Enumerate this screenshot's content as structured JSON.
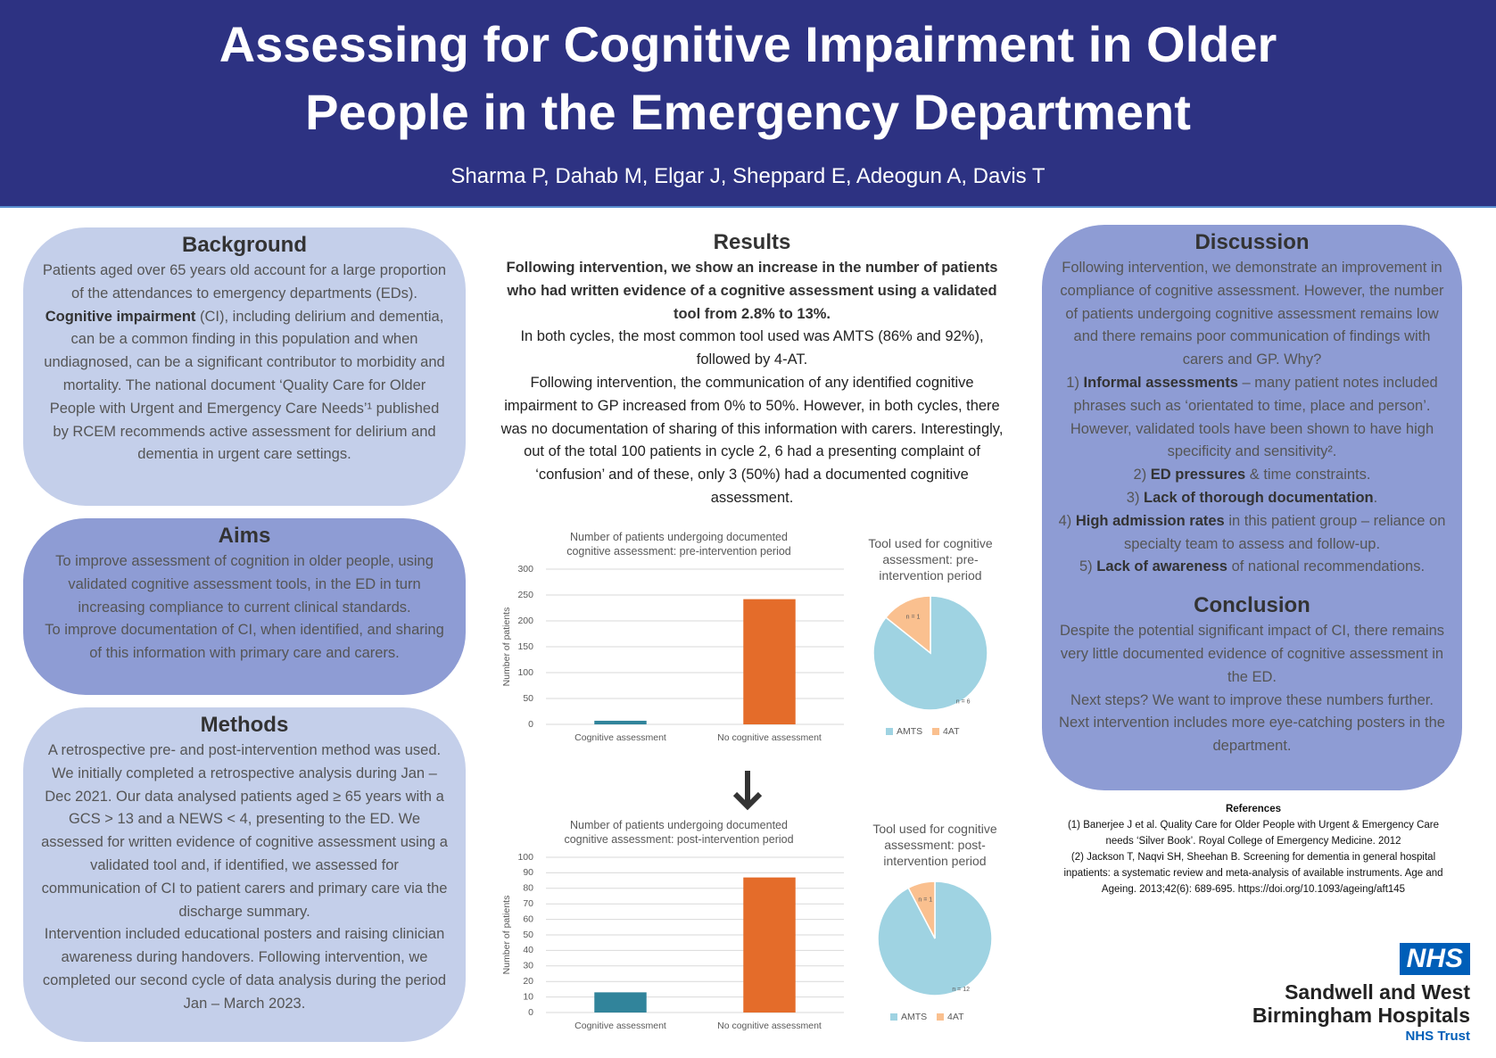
{
  "header": {
    "title": [
      "Assessing for Cognitive Impairment in Older",
      "People in the Emergency Department"
    ],
    "authors": "Sharma P, Dahab M, Elgar J, Sheppard E, Adeogun A, Davis T"
  },
  "sections": [
    {
      "heading": "Background",
      "paragraphs": [
        [
          "Patients aged over 65 years old account for a large proportion of the attendances to emergency departments (EDs). ",
          {
            "bold": "Cognitive impairment"
          },
          " (CI), including delirium and dementia, can be a common finding in this population and when undiagnosed, can be a significant contributor to morbidity and mortality. The national document ‘Quality Care for Older People with Urgent and Emergency Care Needs’¹ published by RCEM recommends active assessment for delirium and dementia in urgent care settings."
        ]
      ]
    },
    {
      "heading": "Aims",
      "paragraphs": [
        [
          "To improve assessment of cognition in older people, using validated cognitive assessment tools, in the ED in turn increasing compliance to current clinical standards."
        ],
        [
          "To improve documentation of CI, when identified, and sharing of this information with primary care and carers."
        ]
      ]
    },
    {
      "heading": "Methods",
      "paragraphs": [
        [
          "A retrospective pre- and post-intervention method was used. We initially completed a retrospective analysis during Jan – Dec 2021. Our data analysed patients aged ≥ 65 years with a GCS > 13 and a NEWS < 4, presenting to the ED. We assessed for written evidence of cognitive assessment using a validated tool and, if identified, we assessed for communication of CI to patient carers and primary care via the discharge summary."
        ],
        [
          "Intervention included educational posters and raising clinician awareness during handovers. Following intervention, we completed our second cycle of data analysis during the period Jan – March 2023."
        ]
      ]
    },
    {
      "heading": "Results",
      "paragraphs": [
        [
          {
            "bold": "Following intervention, we show an increase in the number of patients who had written evidence of a cognitive assessment using a validated tool from 2.8% to 13%."
          }
        ],
        [
          "In both cycles, the most common tool used was AMTS (86% and 92%), followed by 4-AT."
        ],
        [
          "Following intervention, the communication of any identified cognitive impairment to GP increased from 0% to 50%. However, in both cycles, there was no documentation of sharing of this information with carers. Interestingly, out of the total 100 patients in cycle 2, 6 had a presenting complaint of ‘confusion’ and of these, only 3 (50%) had a documented cognitive assessment."
        ]
      ]
    },
    {
      "heading": "Discussion",
      "paragraphs": [
        [
          "Following intervention, we demonstrate an improvement in compliance of cognitive assessment. However, the number of patients undergoing cognitive assessment remains low and there remains poor communication of findings with carers and GP. Why?"
        ],
        [
          "1) ",
          {
            "bold": "Informal assessments"
          },
          " – many patient notes included phrases such as ‘orientated to time, place and person’. However, validated tools have been shown to have high specificity and sensitivity²."
        ],
        [
          "2) ",
          {
            "bold": "ED pressures"
          },
          " & time constraints."
        ],
        [
          "3) ",
          {
            "bold": "Lack of thorough documentation"
          },
          "."
        ],
        [
          "4) ",
          {
            "bold": "High admission rates"
          },
          " in this patient group – reliance on specialty team to assess and follow-up."
        ],
        [
          "5) ",
          {
            "bold": "Lack of awareness"
          },
          " of national recommendations."
        ]
      ]
    },
    {
      "heading": "Conclusion",
      "paragraphs": [
        [
          "Despite the potential significant impact of CI, there remains very little documented evidence of cognitive assessment in the ED."
        ],
        [
          "Next steps? We want to improve these numbers further. Next intervention includes more eye-catching posters in the department."
        ]
      ]
    }
  ],
  "references": {
    "heading": "References",
    "items": [
      "(1) Banerjee J et al. Quality Care for Older People with Urgent & Emergency Care needs ‘Silver Book’. Royal College of Emergency Medicine. 2012",
      "(2) Jackson T, Naqvi SH, Sheehan B. Screening for dementia in general hospital inpatients: a systematic review and meta-analysis of available instruments. Age and Ageing. 2013;42(6): 689-695. https://doi.org/10.1093/ageing/aft145"
    ]
  },
  "logo": {
    "badge": "NHS",
    "name": [
      "Sandwell and West",
      "Birmingham Hospitals"
    ],
    "trust": "NHS Trust"
  },
  "chart_data": [
    {
      "type": "bar",
      "title": "Number of patients undergoing documented cognitive assessment: pre-intervention period",
      "y_label": "Number of patients",
      "categories": [
        "Cognitive assessment",
        "No cognitive assessment"
      ],
      "values": [
        7,
        242
      ],
      "colors": [
        "#31849b",
        "#e46c2a"
      ],
      "ylim": [
        0,
        300
      ],
      "yticks": [
        0,
        50,
        100,
        150,
        200,
        250,
        300
      ],
      "grid": true
    },
    {
      "type": "pie",
      "title": "Tool used for cognitive assessment: pre-intervention period",
      "categories": [
        "AMTS",
        "4AT"
      ],
      "values": [
        6,
        1
      ],
      "value_labels": [
        "n = 6",
        "n = 1"
      ],
      "colors": [
        "#9fd3e2",
        "#fac08f"
      ],
      "legend": "bottom"
    },
    {
      "type": "bar",
      "title": "Number of patients undergoing documented cognitive assessment: post-intervention period",
      "y_label": "Number of patients",
      "categories": [
        "Cognitive assessment",
        "No cognitive assessment"
      ],
      "values": [
        13,
        87
      ],
      "colors": [
        "#31849b",
        "#e46c2a"
      ],
      "ylim": [
        0,
        100
      ],
      "yticks": [
        0,
        10,
        20,
        30,
        40,
        50,
        60,
        70,
        80,
        90,
        100
      ],
      "grid": true
    },
    {
      "type": "pie",
      "title": "Tool used for cognitive assessment: post-intervention period",
      "categories": [
        "AMTS",
        "4AT"
      ],
      "values": [
        12,
        1
      ],
      "value_labels": [
        "n = 12",
        "n = 1"
      ],
      "colors": [
        "#9fd3e2",
        "#fac08f"
      ],
      "legend": "bottom"
    }
  ]
}
